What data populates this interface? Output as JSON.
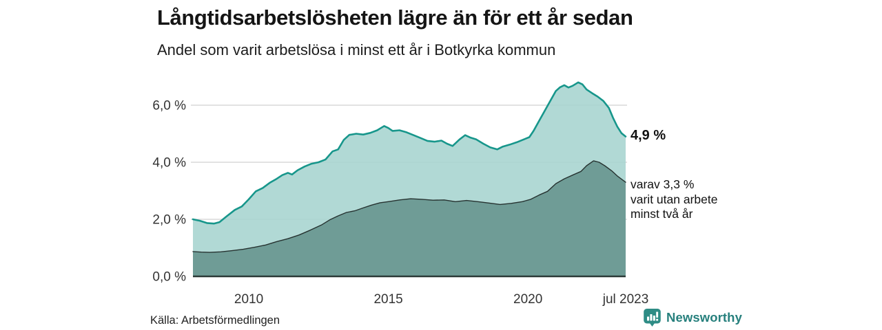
{
  "header": {
    "title": "Långtidsarbetslösheten lägre än för ett år sedan",
    "subtitle": "Andel som varit arbetslösa i minst ett år i Botkyrka kommun"
  },
  "chart_data": {
    "type": "area",
    "title": "Långtidsarbetslösheten lägre än för ett år sedan",
    "subtitle": "Andel som varit arbetslösa i minst ett år i Botkyrka kommun",
    "unit": "%",
    "xlim": [
      2008,
      2023.5
    ],
    "ylim": [
      0,
      7
    ],
    "grid": "horizontal",
    "legend_position": "none",
    "x_ticks": [
      {
        "t": 2010,
        "label": "2010"
      },
      {
        "t": 2015,
        "label": "2015"
      },
      {
        "t": 2020,
        "label": "2020"
      },
      {
        "t": 2023.5,
        "label": "jul 2023"
      }
    ],
    "y_ticks": [
      {
        "v": 0,
        "label": "0,0 %"
      },
      {
        "v": 2,
        "label": "2,0 %"
      },
      {
        "v": 4,
        "label": "4,0 %"
      },
      {
        "v": 6,
        "label": "6,0 %"
      }
    ],
    "series": [
      {
        "name": "Arbetslösa minst ett år",
        "line_color": "#17968b",
        "fill_color": "#a8d5d0",
        "fill_opacity": 0.9,
        "line_width": 2.6,
        "latest_label": "4,9 %",
        "latest_value": 4.9,
        "points": [
          [
            2008.0,
            2.0
          ],
          [
            2008.25,
            1.95
          ],
          [
            2008.5,
            1.87
          ],
          [
            2008.75,
            1.85
          ],
          [
            2008.95,
            1.9
          ],
          [
            2009.2,
            2.1
          ],
          [
            2009.5,
            2.33
          ],
          [
            2009.75,
            2.45
          ],
          [
            2010.0,
            2.7
          ],
          [
            2010.25,
            2.98
          ],
          [
            2010.5,
            3.1
          ],
          [
            2010.75,
            3.28
          ],
          [
            2011.0,
            3.42
          ],
          [
            2011.2,
            3.55
          ],
          [
            2011.4,
            3.63
          ],
          [
            2011.55,
            3.57
          ],
          [
            2011.75,
            3.72
          ],
          [
            2012.0,
            3.85
          ],
          [
            2012.25,
            3.95
          ],
          [
            2012.5,
            4.0
          ],
          [
            2012.75,
            4.1
          ],
          [
            2013.0,
            4.38
          ],
          [
            2013.2,
            4.45
          ],
          [
            2013.4,
            4.78
          ],
          [
            2013.6,
            4.96
          ],
          [
            2013.85,
            5.0
          ],
          [
            2014.1,
            4.97
          ],
          [
            2014.35,
            5.03
          ],
          [
            2014.6,
            5.12
          ],
          [
            2014.85,
            5.27
          ],
          [
            2015.0,
            5.2
          ],
          [
            2015.15,
            5.1
          ],
          [
            2015.4,
            5.12
          ],
          [
            2015.65,
            5.05
          ],
          [
            2015.9,
            4.95
          ],
          [
            2016.15,
            4.85
          ],
          [
            2016.4,
            4.75
          ],
          [
            2016.65,
            4.72
          ],
          [
            2016.9,
            4.76
          ],
          [
            2017.1,
            4.65
          ],
          [
            2017.3,
            4.57
          ],
          [
            2017.55,
            4.8
          ],
          [
            2017.75,
            4.95
          ],
          [
            2017.95,
            4.86
          ],
          [
            2018.15,
            4.8
          ],
          [
            2018.4,
            4.65
          ],
          [
            2018.65,
            4.52
          ],
          [
            2018.9,
            4.45
          ],
          [
            2019.1,
            4.55
          ],
          [
            2019.35,
            4.62
          ],
          [
            2019.6,
            4.7
          ],
          [
            2019.85,
            4.8
          ],
          [
            2020.05,
            4.88
          ],
          [
            2020.2,
            5.1
          ],
          [
            2020.4,
            5.45
          ],
          [
            2020.6,
            5.8
          ],
          [
            2020.8,
            6.15
          ],
          [
            2021.0,
            6.5
          ],
          [
            2021.15,
            6.63
          ],
          [
            2021.3,
            6.7
          ],
          [
            2021.45,
            6.62
          ],
          [
            2021.6,
            6.68
          ],
          [
            2021.8,
            6.8
          ],
          [
            2021.95,
            6.73
          ],
          [
            2022.1,
            6.55
          ],
          [
            2022.3,
            6.42
          ],
          [
            2022.5,
            6.3
          ],
          [
            2022.7,
            6.15
          ],
          [
            2022.9,
            5.9
          ],
          [
            2023.05,
            5.55
          ],
          [
            2023.2,
            5.25
          ],
          [
            2023.35,
            5.02
          ],
          [
            2023.5,
            4.9
          ]
        ]
      },
      {
        "name": "Arbetslösa minst två år",
        "line_color": "#263230",
        "fill_color": "#6f9c96",
        "fill_opacity": 1,
        "line_width": 1.4,
        "latest_label": "3,3 %",
        "latest_value": 3.3,
        "points": [
          [
            2008.0,
            0.87
          ],
          [
            2008.3,
            0.85
          ],
          [
            2008.6,
            0.84
          ],
          [
            2009.0,
            0.86
          ],
          [
            2009.4,
            0.9
          ],
          [
            2009.8,
            0.95
          ],
          [
            2010.2,
            1.02
          ],
          [
            2010.6,
            1.1
          ],
          [
            2011.0,
            1.22
          ],
          [
            2011.4,
            1.32
          ],
          [
            2011.8,
            1.45
          ],
          [
            2012.2,
            1.62
          ],
          [
            2012.6,
            1.8
          ],
          [
            2012.9,
            1.98
          ],
          [
            2013.2,
            2.12
          ],
          [
            2013.5,
            2.24
          ],
          [
            2013.8,
            2.3
          ],
          [
            2014.1,
            2.4
          ],
          [
            2014.4,
            2.5
          ],
          [
            2014.7,
            2.58
          ],
          [
            2015.0,
            2.62
          ],
          [
            2015.4,
            2.68
          ],
          [
            2015.8,
            2.72
          ],
          [
            2016.2,
            2.7
          ],
          [
            2016.6,
            2.67
          ],
          [
            2017.0,
            2.68
          ],
          [
            2017.4,
            2.62
          ],
          [
            2017.8,
            2.66
          ],
          [
            2018.2,
            2.62
          ],
          [
            2018.6,
            2.57
          ],
          [
            2019.0,
            2.52
          ],
          [
            2019.4,
            2.56
          ],
          [
            2019.8,
            2.62
          ],
          [
            2020.1,
            2.7
          ],
          [
            2020.4,
            2.85
          ],
          [
            2020.7,
            2.98
          ],
          [
            2021.0,
            3.25
          ],
          [
            2021.3,
            3.42
          ],
          [
            2021.6,
            3.55
          ],
          [
            2021.9,
            3.68
          ],
          [
            2022.1,
            3.88
          ],
          [
            2022.35,
            4.05
          ],
          [
            2022.55,
            4.0
          ],
          [
            2022.75,
            3.88
          ],
          [
            2023.0,
            3.7
          ],
          [
            2023.2,
            3.52
          ],
          [
            2023.5,
            3.3
          ]
        ]
      }
    ]
  },
  "annotations": {
    "latest_total": "4,9 %",
    "sub_line1": "varav 3,3 %",
    "sub_line2": "varit utan arbete",
    "sub_line3": "minst två år"
  },
  "footer": {
    "source": "Källa: Arbetsförmedlingen",
    "brand": "Newsworthy"
  },
  "colors": {
    "line_total": "#17968b",
    "fill_total": "#a8d5d0",
    "fill_two_year": "#6f9c96",
    "line_two_year": "#263230",
    "gridline": "#d9d9d9",
    "baseline": "#2c3a38",
    "brand_teal": "#2e8c85",
    "brand_text": "#27807d"
  }
}
